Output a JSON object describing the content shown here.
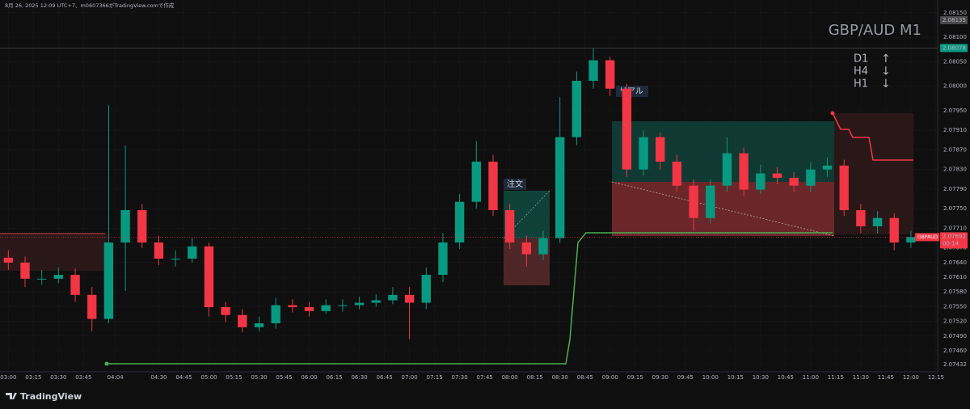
{
  "chart_data": {
    "type": "candlestick",
    "title": "GBP/AUD M1",
    "caption": "8月 26, 2025 12:09 UTC+7、m0607366がTradingView.comで作成",
    "brand": "TradingView",
    "symbol": "GBPAUD",
    "countdown": "00:14",
    "annotations": [
      "注文",
      "リアル"
    ],
    "timeframes": [
      {
        "label": "D1",
        "arrow": "↑"
      },
      {
        "label": "H4",
        "arrow": "↓"
      },
      {
        "label": "H1",
        "arrow": "↓"
      }
    ],
    "up_color": "#089981",
    "down_color": "#f23645",
    "x": [
      180,
      190,
      200,
      210,
      220,
      230,
      240,
      250,
      260,
      270,
      280,
      290,
      300,
      310,
      320,
      330,
      340,
      350,
      360,
      370,
      380,
      390,
      400,
      410,
      420,
      430,
      440,
      450,
      460,
      470,
      480,
      490,
      500,
      510,
      520,
      530,
      540,
      550,
      560,
      570,
      580,
      590,
      600,
      610,
      620,
      630,
      640,
      650,
      660,
      670,
      680,
      690,
      700,
      710,
      720
    ],
    "open": [
      2.0765,
      2.0764,
      2.07607,
      2.07607,
      2.07615,
      2.07574,
      2.07525,
      2.07681,
      2.07747,
      2.07681,
      2.07648,
      2.07648,
      2.07673,
      2.07549,
      2.07533,
      2.07508,
      2.07516,
      2.07553,
      2.07549,
      2.07541,
      2.07553,
      2.07553,
      2.07558,
      2.07563,
      2.07574,
      2.07558,
      2.07615,
      2.07681,
      2.07764,
      2.07846,
      2.07747,
      2.07681,
      2.07657,
      2.0769,
      2.07896,
      2.08011,
      2.08053,
      2.07995,
      2.0783,
      2.07896,
      2.07846,
      2.07797,
      2.07731,
      2.07797,
      2.07863,
      2.07789,
      2.07822,
      2.07813,
      2.07797,
      2.0783,
      2.07838,
      2.07747,
      2.07714,
      2.07731,
      2.07681
    ],
    "high": [
      2.07665,
      2.07652,
      2.07625,
      2.0763,
      2.07628,
      2.0759,
      2.07962,
      2.07879,
      2.0776,
      2.07695,
      2.07665,
      2.0769,
      2.0768,
      2.0756,
      2.07545,
      2.0753,
      2.07568,
      2.07565,
      2.0756,
      2.07565,
      2.07565,
      2.0757,
      2.07575,
      2.0759,
      2.0759,
      2.0763,
      2.077,
      2.0778,
      2.07888,
      2.0786,
      2.0776,
      2.07695,
      2.07705,
      2.07978,
      2.0803,
      2.08077,
      2.0806,
      2.08005,
      2.0791,
      2.07905,
      2.0786,
      2.0781,
      2.0781,
      2.07896,
      2.07875,
      2.0784,
      2.07835,
      2.07825,
      2.07845,
      2.07855,
      2.0785,
      2.0776,
      2.07745,
      2.0774,
      2.07705
    ],
    "low": [
      2.07625,
      2.0759,
      2.07595,
      2.07598,
      2.0756,
      2.075,
      2.07516,
      2.07582,
      2.0767,
      2.07635,
      2.07632,
      2.0764,
      2.0753,
      2.07518,
      2.07498,
      2.075,
      2.07505,
      2.07538,
      2.0753,
      2.07535,
      2.0754,
      2.07545,
      2.0755,
      2.07555,
      2.07483,
      2.07545,
      2.076,
      2.07668,
      2.0775,
      2.07735,
      2.07668,
      2.07632,
      2.07645,
      2.0768,
      2.0788,
      2.07995,
      2.0798,
      2.07815,
      2.07818,
      2.0783,
      2.07785,
      2.07706,
      2.0772,
      2.07785,
      2.07775,
      2.0778,
      2.078,
      2.07785,
      2.07785,
      2.07815,
      2.07735,
      2.077,
      2.077,
      2.07665,
      2.0767
    ],
    "close": [
      2.0764,
      2.07607,
      2.07607,
      2.07615,
      2.07574,
      2.07525,
      2.07681,
      2.07747,
      2.07681,
      2.07648,
      2.07648,
      2.07673,
      2.07549,
      2.07533,
      2.07508,
      2.07516,
      2.07553,
      2.07549,
      2.07541,
      2.07553,
      2.07553,
      2.07558,
      2.07563,
      2.07574,
      2.07558,
      2.07615,
      2.07681,
      2.07764,
      2.07846,
      2.07747,
      2.07681,
      2.07657,
      2.0769,
      2.07896,
      2.08011,
      2.08053,
      2.07995,
      2.0783,
      2.07896,
      2.07846,
      2.07797,
      2.07731,
      2.07797,
      2.07863,
      2.07789,
      2.07822,
      2.07813,
      2.07797,
      2.0783,
      2.07838,
      2.07747,
      2.07714,
      2.07731,
      2.07681,
      2.07692
    ],
    "xlim": [
      175,
      736
    ],
    "ylim": [
      2.07417,
      2.08176
    ],
    "xticks": [
      {
        "value": 180,
        "label": "03:00"
      },
      {
        "value": 195,
        "label": "03:15"
      },
      {
        "value": 210,
        "label": "03:30"
      },
      {
        "value": 225,
        "label": "03:45"
      },
      {
        "value": 244,
        "label": "04:04"
      },
      {
        "value": 270,
        "label": "04:30"
      },
      {
        "value": 285,
        "label": "04:45"
      },
      {
        "value": 300,
        "label": "05:00"
      },
      {
        "value": 315,
        "label": "05:15"
      },
      {
        "value": 330,
        "label": "05:30"
      },
      {
        "value": 345,
        "label": "05:45"
      },
      {
        "value": 360,
        "label": "06:00"
      },
      {
        "value": 375,
        "label": "06:15"
      },
      {
        "value": 390,
        "label": "06:30"
      },
      {
        "value": 405,
        "label": "06:45"
      },
      {
        "value": 420,
        "label": "07:00"
      },
      {
        "value": 435,
        "label": "07:15"
      },
      {
        "value": 450,
        "label": "07:30"
      },
      {
        "value": 465,
        "label": "07:45"
      },
      {
        "value": 480,
        "label": "08:00"
      },
      {
        "value": 495,
        "label": "08:15"
      },
      {
        "value": 510,
        "label": "08:30"
      },
      {
        "value": 525,
        "label": "08:45"
      },
      {
        "value": 540,
        "label": "09:00"
      },
      {
        "value": 555,
        "label": "09:15"
      },
      {
        "value": 570,
        "label": "09:30"
      },
      {
        "value": 585,
        "label": "09:45"
      },
      {
        "value": 600,
        "label": "10:00"
      },
      {
        "value": 615,
        "label": "10:15"
      },
      {
        "value": 630,
        "label": "10:30"
      },
      {
        "value": 645,
        "label": "10:45"
      },
      {
        "value": 660,
        "label": "11:00"
      },
      {
        "value": 675,
        "label": "11:15"
      },
      {
        "value": 690,
        "label": "11:30"
      },
      {
        "value": 705,
        "label": "11:45"
      },
      {
        "value": 720,
        "label": "12:00"
      },
      {
        "value": 735,
        "label": "12:15"
      }
    ],
    "yticks": [
      {
        "value": 2.0815,
        "label": "2.08150"
      },
      {
        "value": 2.081,
        "label": "2.08100"
      },
      {
        "value": 2.0805,
        "label": "2.08050"
      },
      {
        "value": 2.08,
        "label": "2.08000"
      },
      {
        "value": 2.0795,
        "label": "2.07950"
      },
      {
        "value": 2.0791,
        "label": "2.07910"
      },
      {
        "value": 2.0787,
        "label": "2.07870"
      },
      {
        "value": 2.0783,
        "label": "2.07830"
      },
      {
        "value": 2.0779,
        "label": "2.07790"
      },
      {
        "value": 2.0775,
        "label": "2.07750"
      },
      {
        "value": 2.0771,
        "label": "2.07710"
      },
      {
        "value": 2.0767,
        "label": "2.07670"
      },
      {
        "value": 2.0764,
        "label": "2.07640"
      },
      {
        "value": 2.0761,
        "label": "2.07610"
      },
      {
        "value": 2.0758,
        "label": "2.07580"
      },
      {
        "value": 2.0755,
        "label": "2.07550"
      },
      {
        "value": 2.0752,
        "label": "2.07520"
      },
      {
        "value": 2.0749,
        "label": "2.07490"
      },
      {
        "value": 2.0746,
        "label": "2.07460"
      },
      2.07432
    ],
    "marker_high": 2.08135,
    "marker_level": 2.08078,
    "last_price": 2.07692
  }
}
